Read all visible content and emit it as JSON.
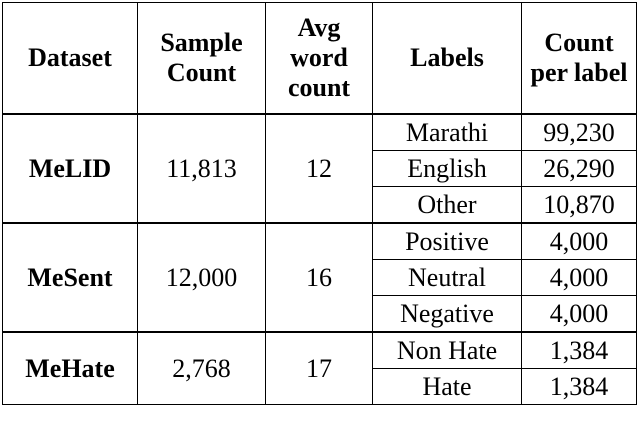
{
  "table": {
    "header": [
      "Dataset",
      "Sample Count",
      "Avg word count",
      "Labels",
      "Count per label"
    ],
    "groups": [
      {
        "dataset": "MeLID",
        "sample_count": "11,813",
        "avg_word_count": "12",
        "rows": [
          {
            "label": "Marathi",
            "count": "99,230"
          },
          {
            "label": "English",
            "count": "26,290"
          },
          {
            "label": "Other",
            "count": "10,870"
          }
        ]
      },
      {
        "dataset": "MeSent",
        "sample_count": "12,000",
        "avg_word_count": "16",
        "rows": [
          {
            "label": "Positive",
            "count": "4,000"
          },
          {
            "label": "Neutral",
            "count": "4,000"
          },
          {
            "label": "Negative",
            "count": "4,000"
          }
        ]
      },
      {
        "dataset": "MeHate",
        "sample_count": "2,768",
        "avg_word_count": "17",
        "rows": [
          {
            "label": "Non Hate",
            "count": "1,384"
          },
          {
            "label": "Hate",
            "count": "1,384"
          }
        ]
      }
    ]
  }
}
